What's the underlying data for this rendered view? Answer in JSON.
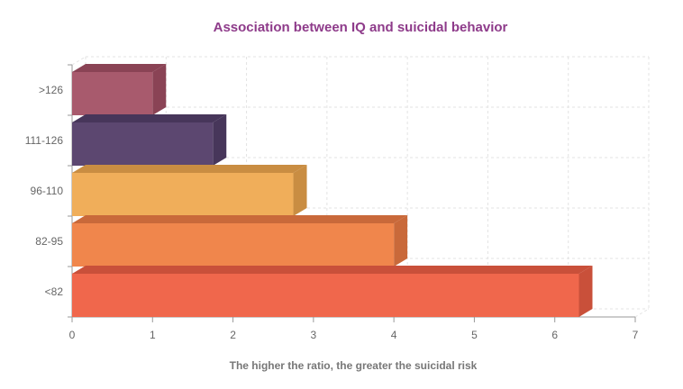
{
  "chart_data": {
    "type": "bar",
    "orientation": "horizontal",
    "style": "3d",
    "title": "Association between IQ and suicidal behavior",
    "title_color": "#8e3b8a",
    "xlabel": "The higher the ratio, the greater the suicidal risk",
    "ylabel": "",
    "xlim": [
      0,
      7
    ],
    "xticks": [
      "0",
      "1",
      "2",
      "3",
      "4",
      "5",
      "6",
      "7"
    ],
    "grid": true,
    "legend": "none",
    "categories": [
      ">126",
      "111-126",
      "96-110",
      "82-95",
      "<82"
    ],
    "values": [
      1.0,
      1.75,
      2.75,
      4.0,
      6.3
    ],
    "colors": [
      "#a85a6d",
      "#5c4770",
      "#f0ae5a",
      "#f0864c",
      "#f0674c"
    ],
    "side_colors": [
      "#8a4355",
      "#47365a",
      "#c98d42",
      "#c9693a",
      "#c9503a"
    ]
  }
}
